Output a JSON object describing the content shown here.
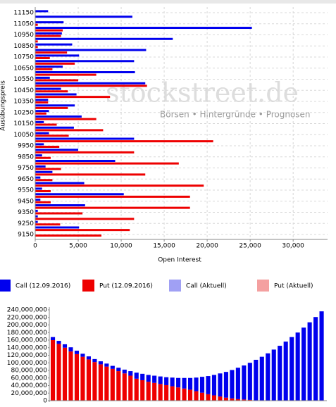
{
  "chart_data": [
    {
      "type": "hbar",
      "xlabel": "Open Interest",
      "ylabel": "Ausübungspreis",
      "annotations": [
        "stockstreet.de",
        "Börsen • Hintergründe • Prognosen"
      ],
      "categories": [
        "11150",
        null,
        "11050",
        null,
        "10950",
        null,
        "10850",
        null,
        "10750",
        null,
        "10650",
        null,
        "10550",
        null,
        "10450",
        null,
        "10350",
        null,
        "10250",
        null,
        "10150",
        null,
        "10050",
        null,
        "9950",
        null,
        "9850",
        null,
        "9750",
        null,
        "9650",
        null,
        "9550",
        null,
        "9450",
        null,
        "9350",
        null,
        "9250",
        null,
        "9150"
      ],
      "series": [
        {
          "name": "Call (12.09.2016)",
          "color": "#0000ee",
          "values": [
            1500,
            11300,
            3300,
            25200,
            3100,
            16000,
            4300,
            12900,
            5100,
            11500,
            3200,
            11600,
            1700,
            12800,
            3000,
            4800,
            1500,
            4600,
            1600,
            5400,
            1000,
            4500,
            1600,
            11500,
            1000,
            5000,
            800,
            9300,
            1200,
            2000,
            600,
            5700,
            800,
            10300,
            600,
            5800,
            300,
            300,
            300,
            5100,
            0
          ]
        },
        {
          "name": "Put (12.09.2016)",
          "color": "#ee0000",
          "values": [
            0,
            0,
            300,
            3200,
            3000,
            300,
            300,
            3700,
            1700,
            4600,
            2000,
            7100,
            5000,
            13000,
            3800,
            8700,
            1500,
            3800,
            1300,
            7100,
            2500,
            7900,
            3900,
            20700,
            2800,
            11500,
            1800,
            16700,
            3000,
            12800,
            2000,
            19600,
            1800,
            18000,
            1800,
            18000,
            5500,
            11500,
            2900,
            11000,
            7700
          ]
        }
      ],
      "xlim": [
        0,
        34000
      ],
      "xticks": [
        0,
        {
          "value": 5000,
          "label": "5,000"
        },
        {
          "value": 10000,
          "label": "10,000"
        },
        {
          "value": 15000,
          "label": "15,000"
        },
        {
          "value": 20000,
          "label": "20,000"
        },
        {
          "value": 25000,
          "label": "25,000"
        },
        {
          "value": 30000,
          "label": "30,000"
        }
      ],
      "grid": true,
      "legend": [
        {
          "name": "Call (12.09.2016)",
          "color": "#0000ee"
        },
        {
          "name": "Put (12.09.2016)",
          "color": "#ee0000"
        },
        {
          "name": "Call (Aktuell)",
          "color": "#a0a0f4"
        },
        {
          "name": "Put (Aktuell)",
          "color": "#f4a0a0"
        }
      ]
    },
    {
      "type": "stacked_bar",
      "series": [
        {
          "color": "#ee0000",
          "values": [
            160000000,
            150000000,
            140000000,
            130000000,
            123000000,
            116000000,
            109000000,
            102000000,
            96000000,
            90000000,
            84000000,
            78000000,
            72000000,
            66000000,
            58000000,
            54000000,
            50000000,
            47000000,
            44000000,
            41000000,
            38000000,
            35000000,
            32000000,
            29000000,
            25000000,
            21000000,
            17000000,
            14000000,
            11000000,
            8000000,
            6000000,
            4000000,
            3000000,
            2000000,
            1000000,
            1000000,
            0,
            0,
            0,
            0,
            0,
            0,
            0,
            0,
            0,
            0
          ]
        },
        {
          "color": "#0000ee",
          "values": [
            8000000,
            8000000,
            9000000,
            11000000,
            9000000,
            8000000,
            8000000,
            8000000,
            8000000,
            8000000,
            8000000,
            9000000,
            10000000,
            12000000,
            16000000,
            17000000,
            18000000,
            19000000,
            20000000,
            21000000,
            23000000,
            25000000,
            28000000,
            31000000,
            36000000,
            42000000,
            48000000,
            54000000,
            61000000,
            68000000,
            75000000,
            83000000,
            90000000,
            98000000,
            107000000,
            115000000,
            125000000,
            135000000,
            145000000,
            156000000,
            168000000,
            180000000,
            193000000,
            207000000,
            221000000,
            236000000
          ]
        }
      ],
      "ylim": [
        0,
        240000000
      ],
      "yticks": [
        0,
        {
          "value": 20000000,
          "label": "20,000,000"
        },
        {
          "value": 40000000,
          "label": "40,000,000"
        },
        {
          "value": 60000000,
          "label": "60,000,000"
        },
        {
          "value": 80000000,
          "label": "80,000,000"
        },
        {
          "value": 100000000,
          "label": "100,000,000"
        },
        {
          "value": 120000000,
          "label": "120,000,000"
        },
        {
          "value": 140000000,
          "label": "140,000,000"
        },
        {
          "value": 160000000,
          "label": "160,000,000"
        },
        {
          "value": 180000000,
          "label": "180,000,000"
        },
        {
          "value": 200000000,
          "label": "200,000,000"
        },
        {
          "value": 220000000,
          "label": "220,000,000"
        },
        {
          "value": 240000000,
          "label": "240,000,000"
        }
      ]
    }
  ]
}
